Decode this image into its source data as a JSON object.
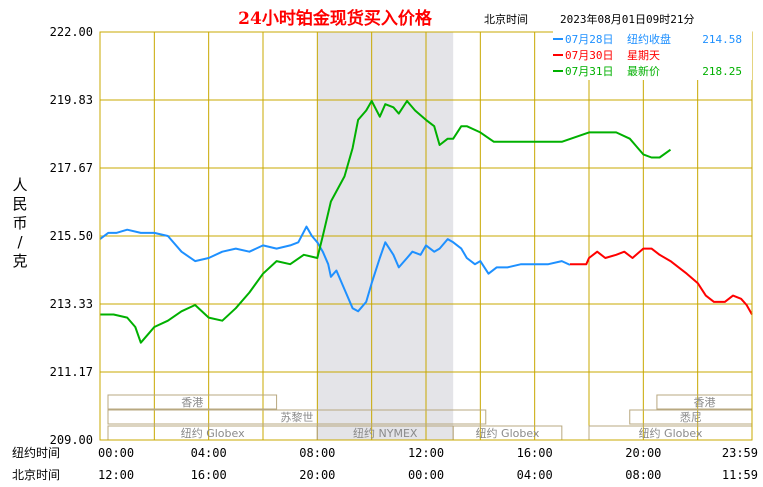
{
  "chart_data": {
    "type": "line",
    "title": "24小时铂金现货买入价格",
    "subtitle": "北京时间",
    "timestamp": "2023年08月01日09时21分",
    "ylabel": "人民币/克",
    "ylim": [
      209.0,
      222.0
    ],
    "y_ticks": [
      "222.00",
      "219.83",
      "217.67",
      "215.50",
      "213.33",
      "211.17",
      "209.00"
    ],
    "x_rows": [
      {
        "label": "纽约时间",
        "ticks": [
          "00:00",
          "04:00",
          "08:00",
          "12:00",
          "16:00",
          "20:00",
          "23:59"
        ]
      },
      {
        "label": "北京时间",
        "ticks": [
          "12:00",
          "16:00",
          "20:00",
          "00:00",
          "04:00",
          "08:00",
          "11:59"
        ]
      }
    ],
    "grid": true,
    "legend_position": "top-right",
    "legend": [
      {
        "date": "07月28日",
        "label": "纽约收盘",
        "value": "214.58",
        "color": "#1e90ff"
      },
      {
        "date": "07月30日",
        "label": "星期天",
        "value": "",
        "color": "#ff0000"
      },
      {
        "date": "07月31日",
        "label": "最新价",
        "value": "218.25",
        "color": "#00b000"
      }
    ],
    "sessions": [
      {
        "label": "香港",
        "row": 1,
        "start": 0.0,
        "end": 6.5
      },
      {
        "label": "苏黎世",
        "row": 2,
        "start": 0.0,
        "end": 14.2
      },
      {
        "label": "纽约 Globex",
        "row": 3,
        "start": 0.0,
        "end": 8.0
      },
      {
        "label": "纽约 NYMEX",
        "row": 3,
        "start": 8.0,
        "end": 13.0
      },
      {
        "label": "纽约 Globex",
        "row": 3,
        "start": 13.0,
        "end": 17.0
      },
      {
        "label": "香港",
        "row": 1,
        "start": 20.5,
        "end": 24.0
      },
      {
        "label": "悉尼",
        "row": 2,
        "start": 19.5,
        "end": 24.0
      },
      {
        "label": "纽约 Globex",
        "row": 3,
        "start": 18.0,
        "end": 24.0
      }
    ],
    "nymex_hours": [
      8.0,
      13.0
    ],
    "series": [
      {
        "name": "07月28日",
        "color": "#1e90ff",
        "x": [
          0,
          0.3,
          0.6,
          1.0,
          1.5,
          2.0,
          2.5,
          3.0,
          3.5,
          4.0,
          4.5,
          5.0,
          5.5,
          6.0,
          6.5,
          7.0,
          7.3,
          7.6,
          7.8,
          8.0,
          8.2,
          8.4,
          8.5,
          8.7,
          9.0,
          9.3,
          9.5,
          9.8,
          10.0,
          10.3,
          10.5,
          10.8,
          11.0,
          11.3,
          11.5,
          11.8,
          12.0,
          12.3,
          12.5,
          12.8,
          13.0,
          13.3,
          13.5,
          13.8,
          14.0,
          14.3,
          14.6,
          15.0,
          15.5,
          16.0,
          16.5,
          17.0,
          17.3
        ],
        "y": [
          215.4,
          215.6,
          215.6,
          215.7,
          215.6,
          215.6,
          215.5,
          215.0,
          214.7,
          214.8,
          215.0,
          215.1,
          215.0,
          215.2,
          215.1,
          215.2,
          215.3,
          215.8,
          215.5,
          215.3,
          215.0,
          214.6,
          214.2,
          214.4,
          213.8,
          213.2,
          213.1,
          213.4,
          214.0,
          214.8,
          215.3,
          214.9,
          214.5,
          214.8,
          215.0,
          214.9,
          215.2,
          215.0,
          215.1,
          215.4,
          215.3,
          215.1,
          214.8,
          214.6,
          214.7,
          214.3,
          214.5,
          214.5,
          214.6,
          214.6,
          214.6,
          214.7,
          214.58
        ]
      },
      {
        "name": "07月30日",
        "color": "#ff0000",
        "x": [
          17.3,
          17.6,
          17.9,
          18.0,
          18.3,
          18.6,
          19.0,
          19.3,
          19.6,
          20.0,
          20.3,
          20.6,
          21.0,
          21.3,
          21.6,
          22.0,
          22.3,
          22.6,
          23.0,
          23.3,
          23.6,
          23.8,
          24.0
        ],
        "y": [
          214.6,
          214.6,
          214.6,
          214.8,
          215.0,
          214.8,
          214.9,
          215.0,
          214.8,
          215.1,
          215.1,
          214.9,
          214.7,
          214.5,
          214.3,
          214.0,
          213.6,
          213.4,
          213.4,
          213.6,
          213.5,
          213.3,
          213.0
        ]
      },
      {
        "name": "07月31日",
        "color": "#00b000",
        "x": [
          0,
          0.5,
          1.0,
          1.3,
          1.5,
          1.8,
          2.0,
          2.5,
          3.0,
          3.5,
          4.0,
          4.5,
          5.0,
          5.5,
          6.0,
          6.5,
          7.0,
          7.5,
          8.0,
          8.2,
          8.5,
          9.0,
          9.3,
          9.5,
          9.8,
          10.0,
          10.3,
          10.5,
          10.8,
          11.0,
          11.3,
          11.6,
          12.0,
          12.3,
          12.5,
          12.8,
          13.0,
          13.3,
          13.5,
          14.0,
          14.5,
          15.0,
          16.0,
          17.0,
          18.0,
          19.0,
          19.5,
          19.8,
          20.0,
          20.3,
          20.6,
          21.0
        ],
        "y": [
          213.0,
          213.0,
          212.9,
          212.6,
          212.1,
          212.4,
          212.6,
          212.8,
          213.1,
          213.3,
          212.9,
          212.8,
          213.2,
          213.7,
          214.3,
          214.7,
          214.6,
          214.9,
          214.8,
          215.5,
          216.6,
          217.4,
          218.3,
          219.2,
          219.5,
          219.8,
          219.3,
          219.7,
          219.6,
          219.4,
          219.8,
          219.5,
          219.2,
          219.0,
          218.4,
          218.6,
          218.6,
          219.0,
          219.0,
          218.8,
          218.5,
          218.5,
          218.5,
          218.5,
          218.8,
          218.8,
          218.6,
          218.3,
          218.1,
          218.0,
          218.0,
          218.25
        ]
      }
    ]
  }
}
